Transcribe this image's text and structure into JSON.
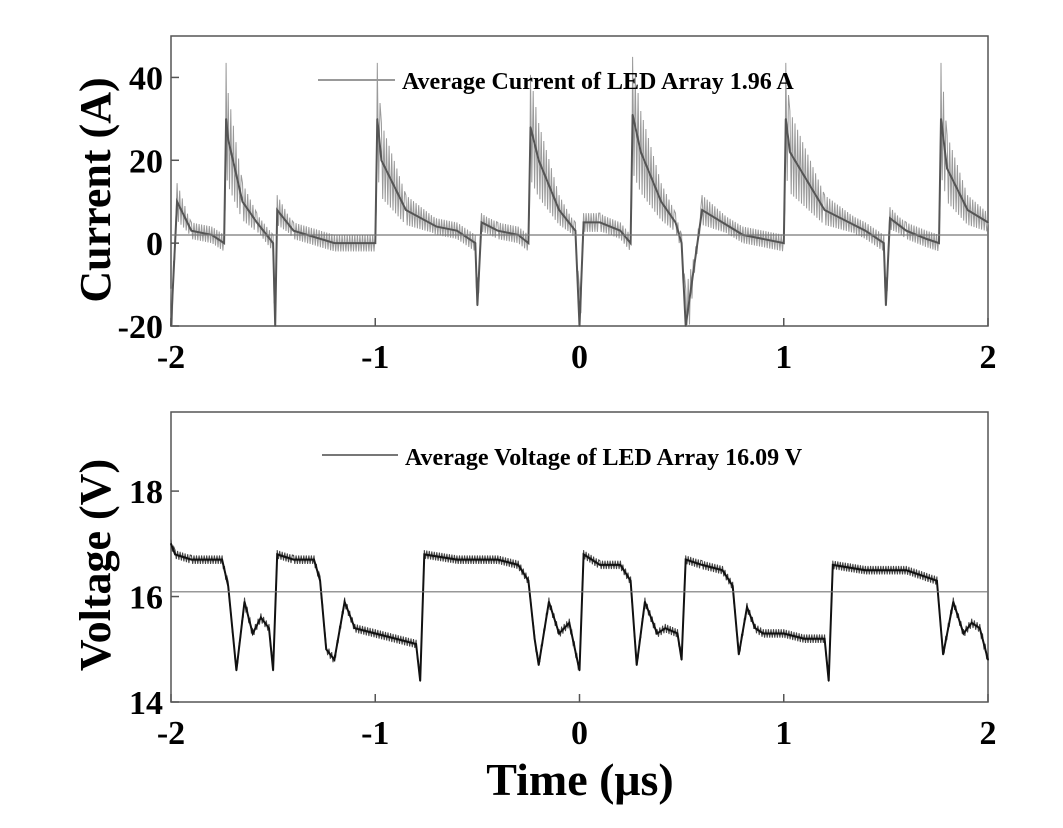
{
  "chart_data": [
    {
      "type": "line",
      "xlabel": "",
      "ylabel": "Current (A)",
      "xlim": [
        -2,
        2
      ],
      "ylim": [
        -20,
        50
      ],
      "x_ticks": [
        -2,
        -1,
        0,
        1,
        2
      ],
      "x_tick_labels": [
        "-2",
        "-1",
        "0",
        "1",
        "2"
      ],
      "y_ticks": [
        -20,
        0,
        20,
        40
      ],
      "y_tick_labels": [
        "-20",
        "0",
        "20",
        "40"
      ],
      "grid": false,
      "legend_position": "top-right",
      "legend": "Average Current of LED Array 1.96 A",
      "average_line": 1.96,
      "series": [
        {
          "name": "Average Current of LED Array 1.96 A",
          "x": [
            -2.0,
            -1.97,
            -1.9,
            -1.8,
            -1.74,
            -1.73,
            -1.72,
            -1.65,
            -1.58,
            -1.5,
            -1.49,
            -1.48,
            -1.4,
            -1.2,
            -1.0,
            -0.99,
            -0.97,
            -0.85,
            -0.7,
            -0.6,
            -0.51,
            -0.5,
            -0.48,
            -0.4,
            -0.3,
            -0.25,
            -0.24,
            -0.2,
            -0.1,
            -0.02,
            0.0,
            0.02,
            0.1,
            0.2,
            0.25,
            0.26,
            0.3,
            0.4,
            0.47,
            0.5,
            0.52,
            0.6,
            0.8,
            1.0,
            1.01,
            1.03,
            1.2,
            1.4,
            1.49,
            1.5,
            1.52,
            1.6,
            1.7,
            1.76,
            1.77,
            1.8,
            1.9,
            2.0
          ],
          "y": [
            -20,
            10,
            3,
            2,
            0,
            30,
            25,
            10,
            5,
            0,
            -20,
            8,
            3,
            0,
            0,
            30,
            20,
            8,
            4,
            3,
            0,
            -15,
            5,
            3,
            2,
            0,
            28,
            20,
            8,
            3,
            -20,
            5,
            5,
            3,
            0,
            31,
            22,
            10,
            5,
            0,
            -20,
            8,
            2,
            0,
            30,
            22,
            8,
            3,
            0,
            -15,
            6,
            3,
            1,
            0,
            30,
            18,
            8,
            5
          ]
        }
      ]
    },
    {
      "type": "line",
      "xlabel": "Time (μs)",
      "ylabel": "Voltage (V)",
      "xlim": [
        -2,
        2
      ],
      "ylim": [
        14,
        19.5
      ],
      "x_ticks": [
        -2,
        -1,
        0,
        1,
        2
      ],
      "x_tick_labels": [
        "-2",
        "-1",
        "0",
        "1",
        "2"
      ],
      "y_ticks": [
        14,
        16,
        18
      ],
      "y_tick_labels": [
        "14",
        "16",
        "18"
      ],
      "grid": false,
      "legend_position": "top-right",
      "legend": "Average Voltage of LED Array 16.09 V",
      "average_line": 16.09,
      "series": [
        {
          "name": "Average Voltage of LED Array 16.09 V",
          "x": [
            -2.0,
            -1.98,
            -1.9,
            -1.8,
            -1.75,
            -1.72,
            -1.68,
            -1.64,
            -1.6,
            -1.56,
            -1.52,
            -1.5,
            -1.48,
            -1.4,
            -1.3,
            -1.27,
            -1.24,
            -1.2,
            -1.15,
            -1.1,
            -1.0,
            -0.9,
            -0.8,
            -0.78,
            -0.76,
            -0.6,
            -0.4,
            -0.3,
            -0.25,
            -0.22,
            -0.2,
            -0.15,
            -0.1,
            -0.05,
            0.0,
            0.02,
            0.1,
            0.2,
            0.25,
            0.28,
            0.32,
            0.38,
            0.42,
            0.48,
            0.5,
            0.52,
            0.6,
            0.7,
            0.75,
            0.78,
            0.82,
            0.86,
            0.9,
            1.0,
            1.1,
            1.2,
            1.22,
            1.24,
            1.4,
            1.6,
            1.75,
            1.78,
            1.83,
            1.88,
            1.92,
            1.96,
            2.0
          ],
          "y": [
            17.0,
            16.8,
            16.7,
            16.7,
            16.7,
            16.2,
            14.6,
            15.9,
            15.3,
            15.6,
            15.4,
            14.6,
            16.8,
            16.7,
            16.7,
            16.3,
            15.0,
            14.8,
            15.9,
            15.4,
            15.3,
            15.2,
            15.1,
            14.4,
            16.8,
            16.7,
            16.7,
            16.6,
            16.3,
            15.2,
            14.7,
            15.9,
            15.3,
            15.5,
            14.6,
            16.8,
            16.6,
            16.6,
            16.3,
            14.7,
            15.9,
            15.3,
            15.4,
            15.3,
            14.8,
            16.7,
            16.6,
            16.5,
            16.2,
            14.9,
            15.8,
            15.4,
            15.3,
            15.3,
            15.2,
            15.2,
            14.4,
            16.6,
            16.5,
            16.5,
            16.3,
            14.9,
            15.9,
            15.3,
            15.5,
            15.4,
            14.8
          ]
        }
      ]
    }
  ]
}
